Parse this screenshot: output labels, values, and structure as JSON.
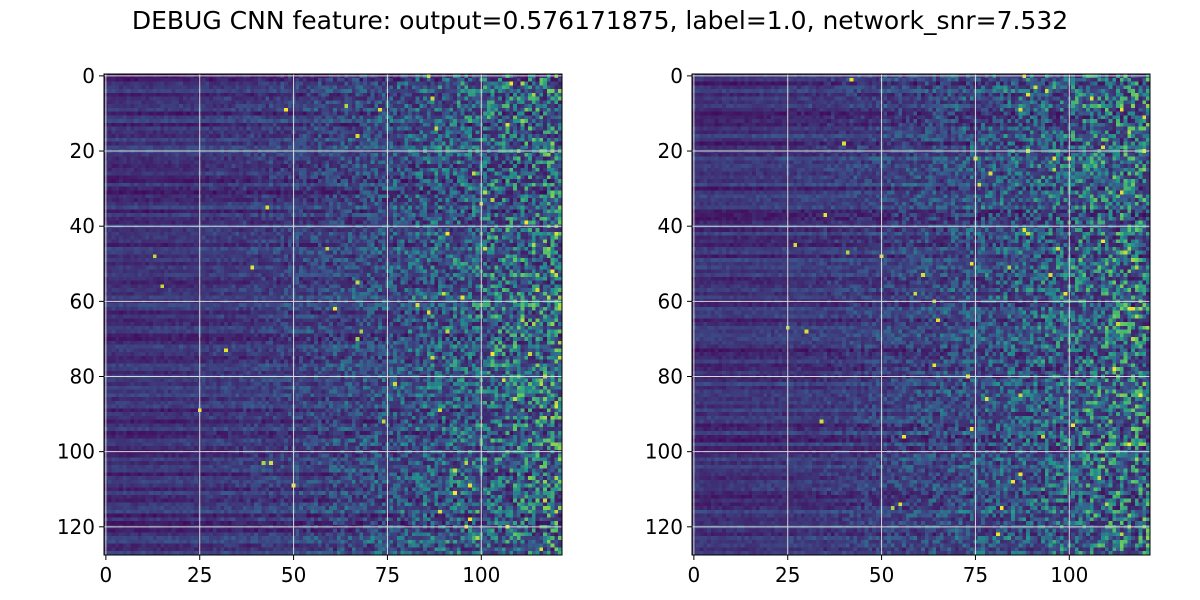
{
  "title": "DEBUG CNN feature: output=0.576171875, label=1.0, network_snr=7.532",
  "chart_data": [
    {
      "type": "heatmap",
      "colormap": "viridis",
      "rows": 128,
      "cols": 122,
      "xlim": [
        -0.5,
        121.5
      ],
      "ylim": [
        127.5,
        -0.5
      ],
      "xticks": [
        0,
        25,
        50,
        75,
        100
      ],
      "yticks": [
        0,
        20,
        40,
        60,
        80,
        100,
        120
      ],
      "grid": true,
      "grid_color": "#d9d9d9",
      "description_pattern": "mostly uniform low values left, increasing random noise with more bright cells to the right"
    },
    {
      "type": "heatmap",
      "colormap": "viridis",
      "rows": 128,
      "cols": 122,
      "xlim": [
        -0.5,
        121.5
      ],
      "ylim": [
        127.5,
        -0.5
      ],
      "xticks": [
        0,
        25,
        50,
        75,
        100
      ],
      "yticks": [
        0,
        20,
        40,
        60,
        80,
        100,
        120
      ],
      "grid": true,
      "grid_color": "#d9d9d9",
      "description_pattern": "mostly uniform low values left, increasing random noise with more bright cells to the right"
    }
  ]
}
